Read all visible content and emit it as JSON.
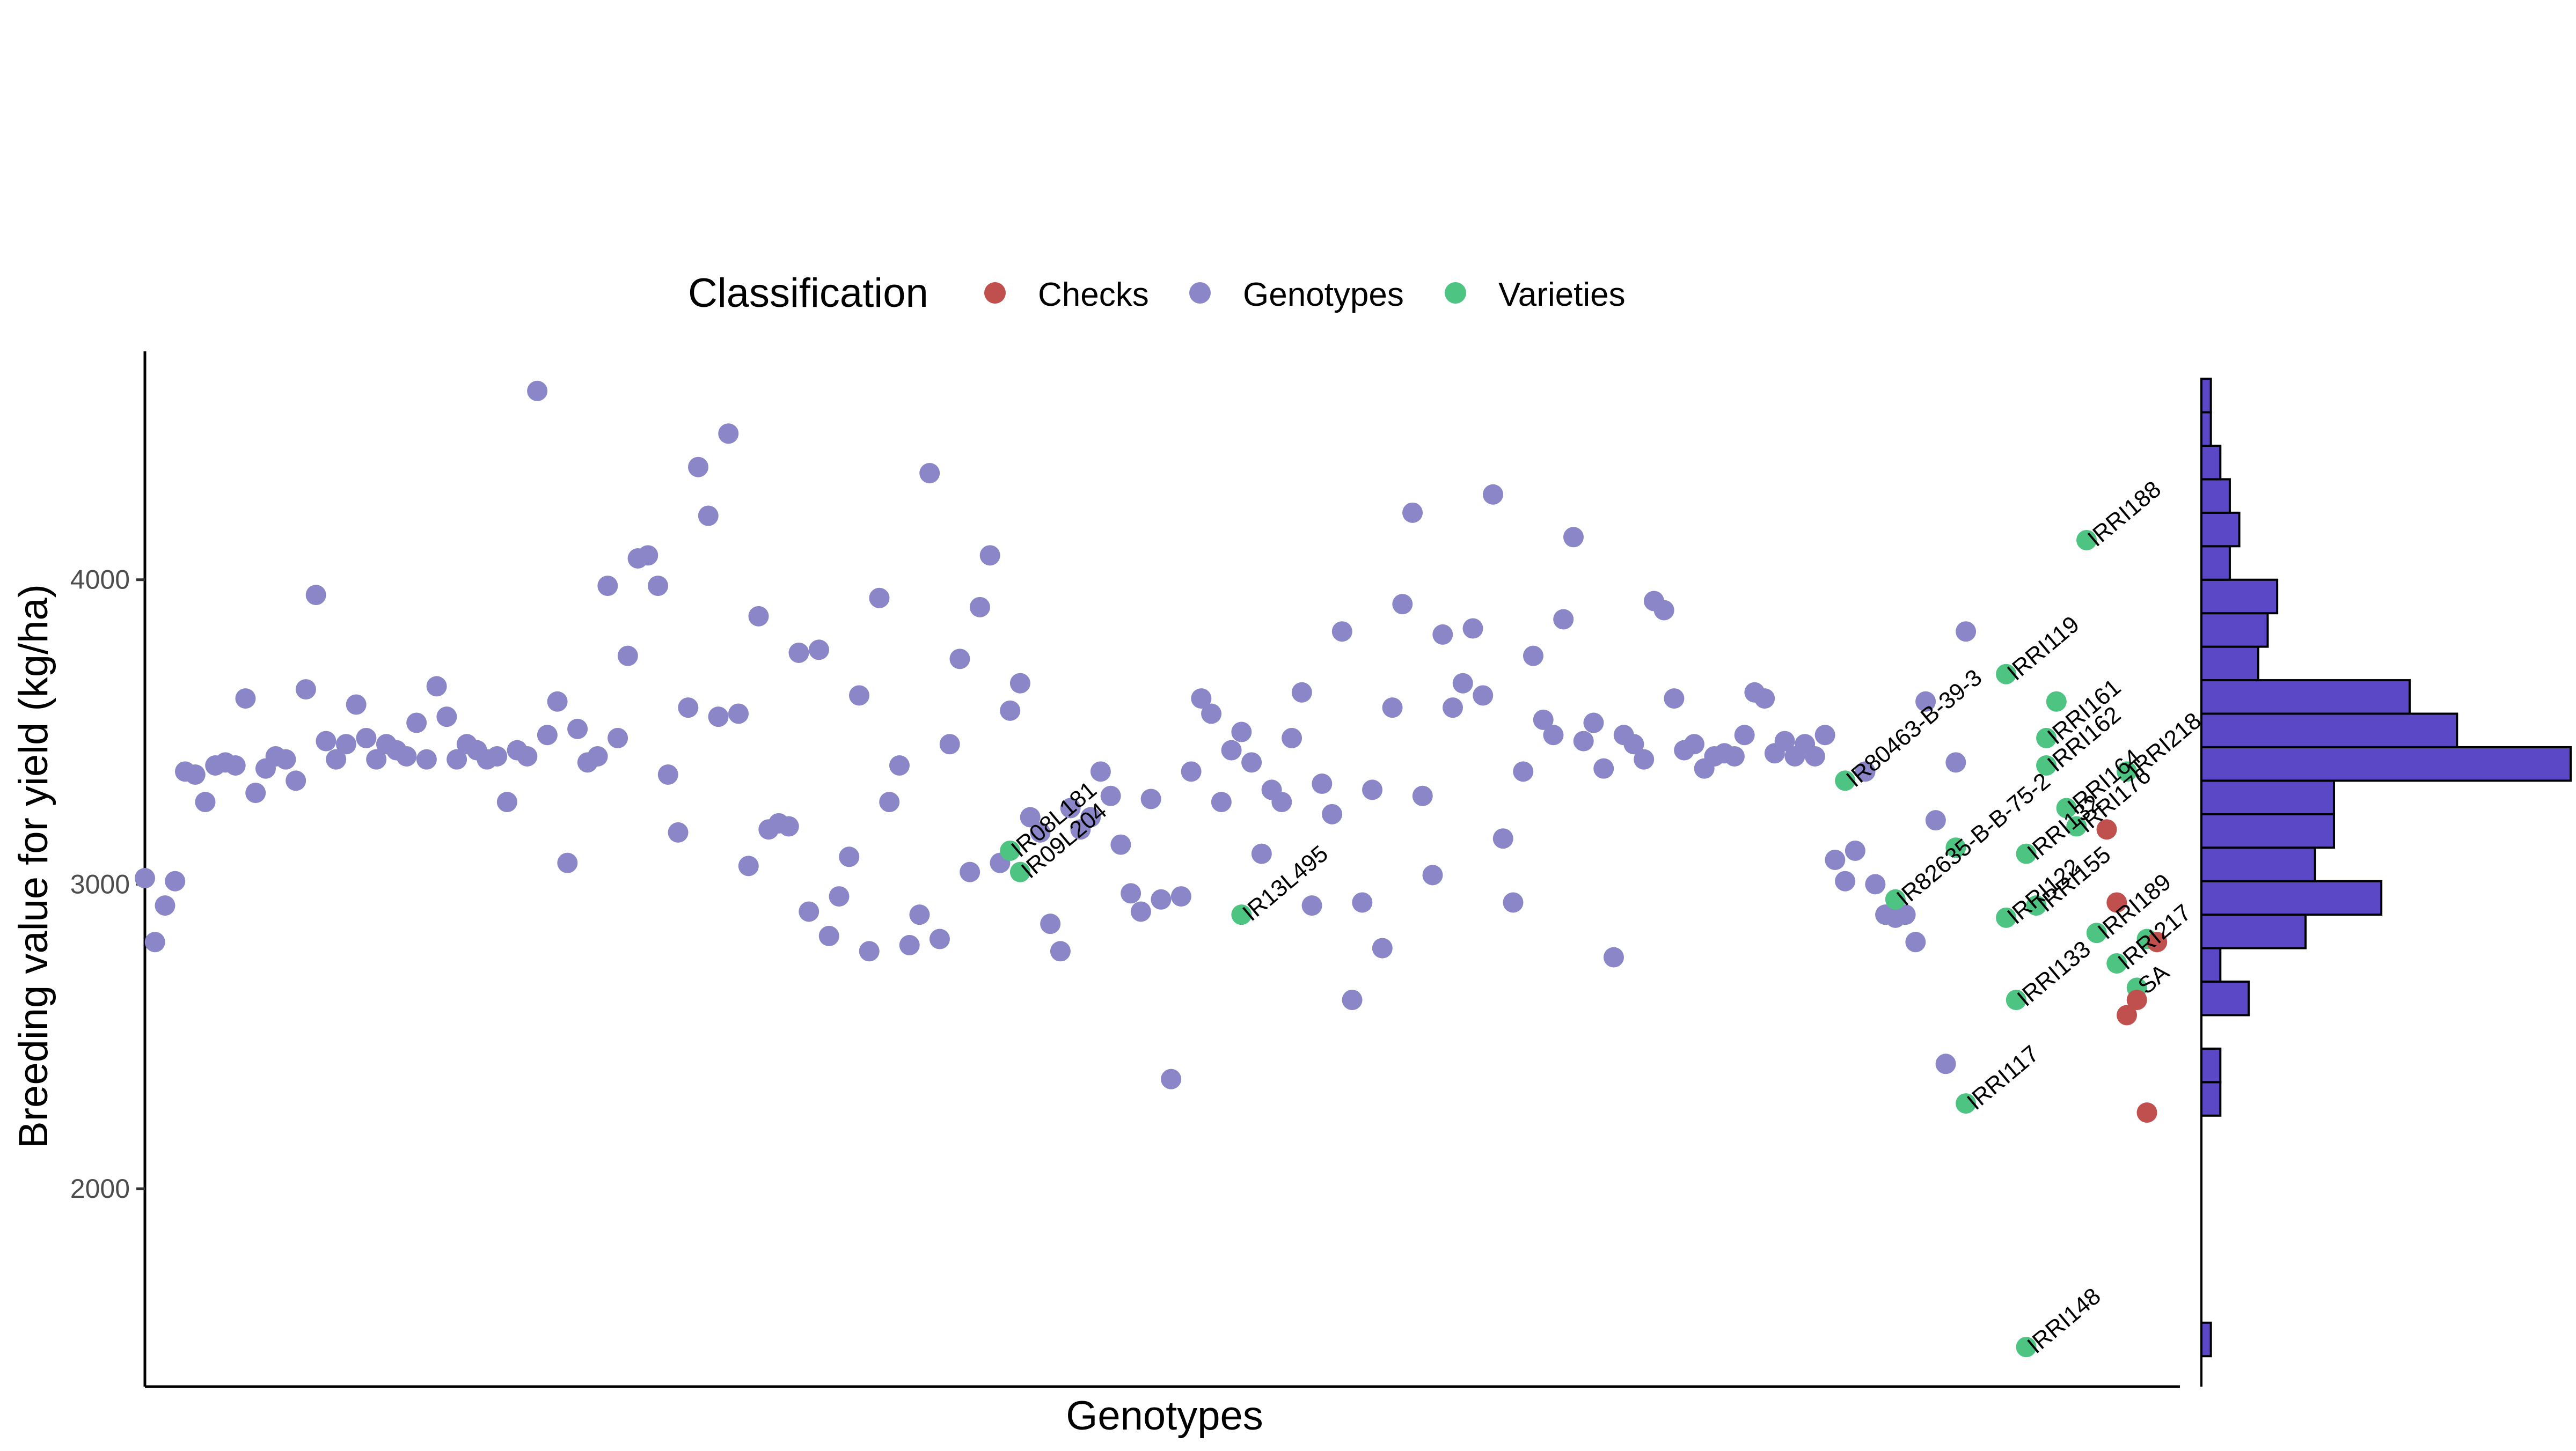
{
  "chart_data": {
    "type": "scatter",
    "title": "",
    "xlabel": "Genotypes",
    "ylabel": "Breeding value for yield (kg/ha)",
    "ylim": [
      1350,
      4750
    ],
    "yticks": [
      2000,
      3000,
      4000
    ],
    "grid": false,
    "legend": {
      "title": "Classification",
      "placement": "top",
      "entries": [
        "Checks",
        "Genotypes",
        "Varieties"
      ]
    },
    "colors": {
      "Checks": "#c0504d",
      "Genotypes": "#8a86c8",
      "Varieties": "#4dc482",
      "histogram_fill": "#5a48c6",
      "histogram_stroke": "#000000"
    },
    "n_genotypes": 210,
    "series": [
      {
        "name": "Genotypes",
        "values": [
          3020,
          2810,
          2930,
          3010,
          3370,
          3360,
          3270,
          3390,
          3400,
          3390,
          3610,
          3300,
          3380,
          3420,
          3410,
          3340,
          3640,
          3950,
          3470,
          3410,
          3460,
          3590,
          3480,
          3410,
          3460,
          3440,
          3420,
          3530,
          3410,
          3650,
          3550,
          3410,
          3460,
          3440,
          3410,
          3420,
          3270,
          3440,
          3420,
          4620,
          3490,
          3600,
          3070,
          3510,
          3400,
          3420,
          3980,
          3480,
          3750,
          4070,
          4080,
          3980,
          3360,
          3170,
          3580,
          4370,
          4210,
          3550,
          4480,
          3560,
          3060,
          3880,
          3180,
          3200,
          3190,
          3760,
          2910,
          3770,
          2830,
          2960,
          3090,
          3620,
          2780,
          3940,
          3270,
          3390,
          2800,
          2900,
          4350,
          2820,
          3460,
          3740,
          3040,
          3910,
          4080,
          3070,
          3570,
          3660,
          3220,
          3170,
          2870,
          2780,
          3250,
          3180,
          3220,
          3370,
          3290,
          3130,
          2970,
          2910,
          3280,
          2950,
          2360,
          2960,
          3370,
          3610,
          3560,
          3270,
          3440,
          3500,
          3400,
          3100,
          3310,
          3270,
          3480,
          3630,
          2930,
          3330,
          3230,
          3830,
          2620,
          2940,
          3310,
          2790,
          3580,
          3920,
          4220,
          3290,
          3030,
          3820,
          3580,
          3660,
          3840,
          3620,
          4280,
          3150,
          2940,
          3370,
          3750,
          3540,
          3490,
          3870,
          4140,
          3470,
          3530,
          3380,
          2760,
          3490,
          3460,
          3410,
          3930,
          3900,
          3610,
          3440,
          3460,
          3380,
          3420,
          3430,
          3420,
          3490,
          3630,
          3610,
          3430,
          3470,
          3420,
          3460,
          3420,
          3490,
          3080,
          3010,
          3110,
          3370,
          3000,
          2900,
          2890,
          2900,
          2810,
          3600,
          3210,
          2410,
          3400,
          3830
        ],
        "labels": []
      },
      {
        "name": "Varieties",
        "x": [
          87,
          88,
          110,
          170,
          175,
          181,
          182,
          186,
          186,
          187,
          188,
          188,
          189,
          190,
          190,
          191,
          192,
          193,
          194,
          195
        ],
        "values": [
          3110,
          3040,
          2900,
          3340,
          2950,
          3120,
          2280,
          3690,
          2890,
          2620,
          3100,
          1480,
          2930,
          3480,
          3390,
          3600,
          3250,
          3190,
          4130,
          2840
        ],
        "labels": [
          "IR08L181",
          "IR09L204",
          "IR13L495",
          "IR80463-B-39-3",
          "IR82635-B-B-75-2",
          "",
          "IRRI117",
          "IRRI119",
          "IRRI122",
          "IRRI133",
          "IRRI132",
          "IRRI148",
          "IRRI155",
          "IRRI161",
          "IRRI162",
          "",
          "IRRI164",
          "IRRI176",
          "IRRI188",
          "IRRI189"
        ]
      },
      {
        "name": "Checks",
        "x": [
          196,
          197,
          198,
          199,
          200
        ],
        "values": [
          3180,
          2940,
          2570,
          2620,
          2250
        ],
        "labels": []
      }
    ],
    "extra_varieties": {
      "x": [
        197,
        198,
        199,
        200
      ],
      "values": [
        2740,
        3370,
        2660,
        2820
      ],
      "labels": [
        "IRRI217",
        "IRRI218",
        "SA",
        ""
      ]
    },
    "extra_checks": {
      "x": [
        201
      ],
      "values": [
        2810
      ],
      "labels": []
    },
    "histogram": {
      "orientation": "horizontal",
      "bins": [
        {
          "from": 1450,
          "to": 1560,
          "count": 1
        },
        {
          "from": 2240,
          "to": 2350,
          "count": 2
        },
        {
          "from": 2350,
          "to": 2460,
          "count": 2
        },
        {
          "from": 2570,
          "to": 2680,
          "count": 5
        },
        {
          "from": 2680,
          "to": 2790,
          "count": 2
        },
        {
          "from": 2790,
          "to": 2900,
          "count": 11
        },
        {
          "from": 2900,
          "to": 3010,
          "count": 19
        },
        {
          "from": 3010,
          "to": 3120,
          "count": 12
        },
        {
          "from": 3120,
          "to": 3230,
          "count": 14
        },
        {
          "from": 3230,
          "to": 3340,
          "count": 14
        },
        {
          "from": 3340,
          "to": 3450,
          "count": 39
        },
        {
          "from": 3450,
          "to": 3560,
          "count": 27
        },
        {
          "from": 3560,
          "to": 3670,
          "count": 22
        },
        {
          "from": 3670,
          "to": 3780,
          "count": 6
        },
        {
          "from": 3780,
          "to": 3890,
          "count": 7
        },
        {
          "from": 3890,
          "to": 4000,
          "count": 8
        },
        {
          "from": 4000,
          "to": 4110,
          "count": 3
        },
        {
          "from": 4110,
          "to": 4220,
          "count": 4
        },
        {
          "from": 4220,
          "to": 4330,
          "count": 3
        },
        {
          "from": 4330,
          "to": 4440,
          "count": 2
        },
        {
          "from": 4440,
          "to": 4550,
          "count": 1
        },
        {
          "from": 4550,
          "to": 4660,
          "count": 1
        }
      ]
    }
  }
}
